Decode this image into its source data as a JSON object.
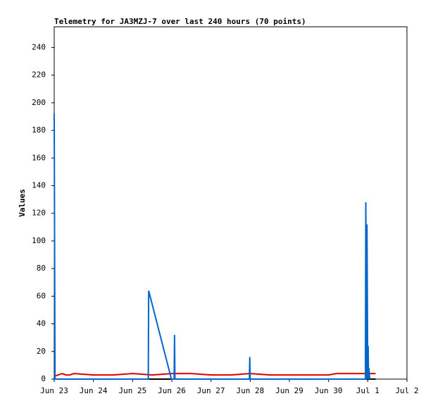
{
  "chart_data": {
    "type": "line",
    "title": "Telemetry for JA3MZJ-7 over last 240 hours (70 points)",
    "y_label": "Values",
    "xlim": [
      0,
      9
    ],
    "ylim": [
      0,
      255
    ],
    "xticks": [
      {
        "value": 0,
        "label": "Jun 23"
      },
      {
        "value": 1,
        "label": "Jun 24"
      },
      {
        "value": 2,
        "label": "Jun 25"
      },
      {
        "value": 3,
        "label": "Jun 26"
      },
      {
        "value": 4,
        "label": "Jun 27"
      },
      {
        "value": 5,
        "label": "Jun 28"
      },
      {
        "value": 6,
        "label": "Jun 29"
      },
      {
        "value": 7,
        "label": "Jun 30"
      },
      {
        "value": 8,
        "label": "Jul 1"
      },
      {
        "value": 9,
        "label": "Jul 2"
      }
    ],
    "yticks": [
      0,
      20,
      40,
      60,
      80,
      100,
      120,
      140,
      160,
      180,
      200,
      220,
      240
    ],
    "series": [
      {
        "color": "#000000",
        "x": [
          0,
          8.2
        ],
        "values": [
          0,
          0
        ]
      },
      {
        "color": "#dd0000",
        "x": [
          0,
          0.1,
          0.2,
          0.3,
          0.4,
          0.5,
          1.0,
          1.5,
          2.0,
          2.5,
          3.0,
          3.5,
          4.0,
          4.5,
          5.0,
          5.5,
          6.0,
          7.0,
          7.2,
          7.5,
          8.0,
          8.2
        ],
        "values": [
          2,
          3,
          4,
          3,
          3,
          4,
          3,
          3,
          4,
          3,
          4,
          4,
          3,
          3,
          4,
          3,
          3,
          3,
          4,
          4,
          4,
          4
        ]
      },
      {
        "color": "#0066cc",
        "x": [
          0,
          0.02,
          2.4,
          2.41,
          2.99,
          3.06,
          3.07,
          3.08,
          4.98,
          4.99,
          5.0,
          7.94,
          7.95,
          7.97,
          7.98,
          8.0,
          8.01,
          8.02,
          8.03,
          8.05
        ],
        "values": [
          192,
          0,
          0,
          64,
          0,
          0,
          32,
          0,
          0,
          16,
          0,
          0,
          128,
          0,
          112,
          0,
          24,
          0,
          8,
          0
        ]
      }
    ]
  }
}
